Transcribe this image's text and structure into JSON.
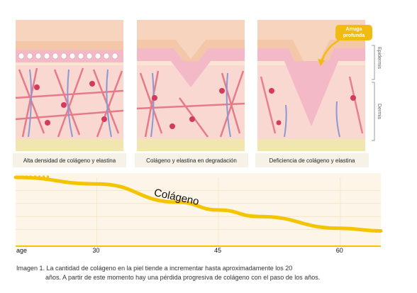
{
  "panels": {
    "one": "Alta densidad de colágeno y elastina",
    "two": "Colágeno y elastina en degradación",
    "three": "Deficiencia de colágeno y elastina"
  },
  "callout": {
    "line1": "Arruga",
    "line2": "profunda"
  },
  "layers": {
    "epidermis": "Epidermis",
    "dermis": "Dermis"
  },
  "chart_data": {
    "type": "line",
    "series": [
      {
        "name": "Colágeno",
        "x": [
          20,
          30,
          40,
          45,
          50,
          60,
          65
        ],
        "y": [
          100,
          90,
          62,
          50,
          40,
          22,
          18
        ]
      }
    ],
    "xlabel": "age",
    "x_ticks": [
      30,
      45,
      60
    ],
    "x_tick_labels": [
      "30",
      "45",
      "60"
    ],
    "xlim": [
      20,
      65
    ],
    "ylim": [
      0,
      100
    ],
    "line_color": "#f5c400",
    "series_label": "Colágeno"
  },
  "caption": {
    "line1": "Imagen 1. La cantidad de colágeno en la piel tiende a incrementar hasta aproximadamente los 20",
    "line2": "años. A partir de este momento hay una pérdida progresiva de colágeno con el paso de los años."
  },
  "colors": {
    "skin": "#f6d6c0",
    "fiber": "#e26b7e",
    "elastin": "#8c98d6",
    "fat": "#f2e6b0",
    "accent": "#f2bb12"
  }
}
